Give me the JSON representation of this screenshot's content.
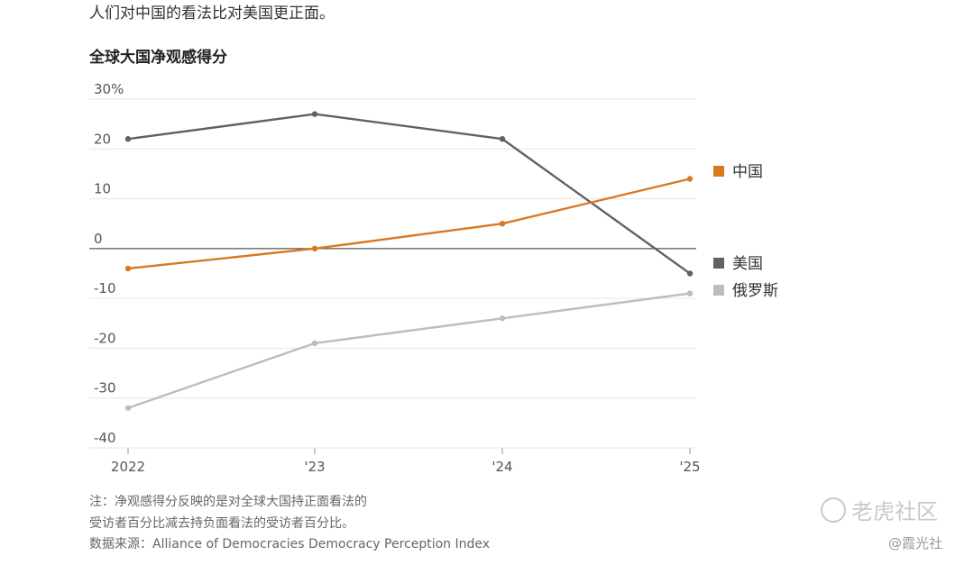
{
  "header": {
    "subtitle": "人们对中国的看法比对美国更正面。",
    "chart_title": "全球大国净观感得分"
  },
  "chart_data": {
    "type": "line",
    "title": "全球大国净观感得分",
    "x": [
      "2022",
      "'23",
      "'24",
      "'25"
    ],
    "yticks": [
      "30%",
      "20",
      "10",
      "0",
      "-10",
      "-20",
      "-30",
      "-40"
    ],
    "ylim": [
      -40,
      30
    ],
    "series": [
      {
        "name": "中国",
        "color": "#d9781f",
        "values": [
          -4,
          0,
          5,
          14
        ]
      },
      {
        "name": "美国",
        "color": "#616161",
        "values": [
          22,
          27,
          22,
          -5
        ]
      },
      {
        "name": "俄罗斯",
        "color": "#bdbdbd",
        "values": [
          -32,
          -19,
          -14,
          -9
        ]
      }
    ],
    "legend": [
      "中国",
      "美国",
      "俄罗斯"
    ]
  },
  "footnotes": {
    "line1": "注：净观感得分反映的是对全球大国持正面看法的",
    "line2": "受访者百分比减去持负面看法的受访者百分比。",
    "line3": "数据来源：Alliance of Democracies Democracy Perception Index"
  },
  "watermarks": {
    "brand": "老虎社区",
    "author": "@霞光社"
  }
}
